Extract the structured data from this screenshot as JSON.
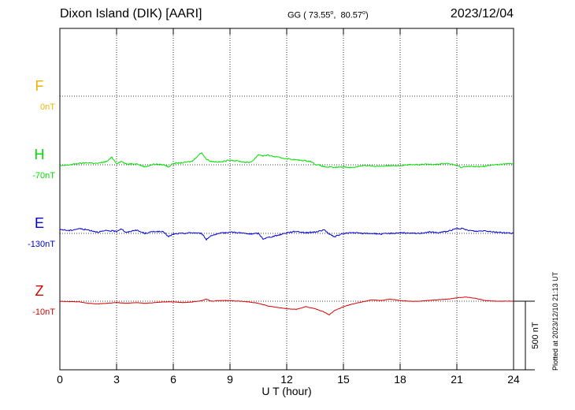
{
  "header": {
    "station": "Dixon Island (DIK)  [AARI]",
    "coords": "GG ( 73.55°,  80.57°)",
    "date": "2023/12/04"
  },
  "footer": {
    "plotted": "Plotted at 2023/12/10 21:13 UT"
  },
  "chart_data": {
    "type": "line",
    "xlabel": "U T (hour)",
    "xlim": [
      0,
      24
    ],
    "xticks": [
      0,
      3,
      6,
      9,
      12,
      15,
      18,
      21,
      24
    ],
    "xtick_labels": [
      "0",
      "3",
      "6",
      "9",
      "12",
      "15",
      "18",
      "21",
      "24"
    ],
    "scale_bar": {
      "label": "500 nT",
      "value_nT": 500
    },
    "grid": true,
    "series": [
      {
        "name": "F",
        "baseline": "0nT",
        "color": "#f0b400",
        "x": [],
        "y": []
      },
      {
        "name": "H",
        "baseline": "-70nT",
        "color": "#00e000",
        "x": [
          0,
          0.5,
          1,
          1.5,
          2,
          2.5,
          2.75,
          3,
          3.25,
          3.5,
          4,
          4.5,
          5,
          5.5,
          5.75,
          6,
          6.5,
          7,
          7.25,
          7.5,
          7.75,
          8,
          8.5,
          9,
          9.5,
          10,
          10.25,
          10.5,
          10.75,
          11,
          11.5,
          12,
          12.5,
          13,
          13.25,
          13.5,
          14,
          14.5,
          15,
          15.5,
          16,
          16.5,
          17,
          17.5,
          18,
          18.5,
          19,
          19.5,
          20,
          20.5,
          21,
          21.25,
          21.5,
          22,
          22.5,
          23,
          23.5,
          24
        ],
        "y": [
          -10,
          0,
          10,
          15,
          10,
          25,
          55,
          10,
          25,
          5,
          10,
          -15,
          5,
          0,
          -15,
          10,
          15,
          25,
          60,
          90,
          40,
          25,
          20,
          35,
          25,
          15,
          35,
          75,
          65,
          70,
          55,
          45,
          35,
          30,
          25,
          5,
          -15,
          -20,
          -15,
          -20,
          -5,
          -10,
          -10,
          -5,
          -5,
          0,
          0,
          5,
          5,
          10,
          -5,
          -20,
          -10,
          -15,
          -10,
          0,
          5,
          10
        ]
      },
      {
        "name": "E",
        "baseline": "-130nT",
        "color": "#0000dd",
        "x": [
          0,
          0.5,
          1,
          1.5,
          2,
          2.5,
          3,
          3.25,
          3.5,
          4,
          4.5,
          5,
          5.5,
          5.75,
          6,
          6.5,
          7,
          7.5,
          7.75,
          8,
          8.5,
          9,
          9.5,
          10,
          10.5,
          10.75,
          11,
          11.5,
          12,
          12.5,
          13,
          13.5,
          14,
          14.25,
          14.5,
          15,
          15.5,
          16,
          16.5,
          17,
          17.5,
          18,
          18.5,
          19,
          19.5,
          20,
          20.5,
          21,
          21.25,
          21.5,
          22,
          22.5,
          23,
          23.5,
          24
        ],
        "y": [
          30,
          20,
          35,
          25,
          10,
          20,
          15,
          35,
          5,
          25,
          0,
          15,
          10,
          -25,
          -5,
          0,
          5,
          0,
          -45,
          -15,
          0,
          10,
          5,
          -5,
          0,
          -40,
          -30,
          -15,
          5,
          15,
          5,
          10,
          25,
          -5,
          -25,
          0,
          5,
          0,
          0,
          -5,
          0,
          5,
          0,
          0,
          10,
          5,
          15,
          35,
          35,
          25,
          15,
          20,
          10,
          5,
          0
        ]
      },
      {
        "name": "Z",
        "baseline": "-10nT",
        "color": "#dd0000",
        "x": [
          0,
          1,
          1.5,
          2,
          2.5,
          3,
          3.5,
          4,
          4.5,
          5,
          5.5,
          6,
          6.5,
          7,
          7.5,
          7.75,
          8,
          8.5,
          9,
          9.5,
          10,
          10.5,
          11,
          11.5,
          12,
          12.5,
          13,
          13.5,
          14,
          14.25,
          14.5,
          15,
          15.5,
          16,
          16.5,
          17,
          17.5,
          18,
          18.5,
          19,
          19.5,
          20,
          20.5,
          21,
          21.5,
          22,
          22.5,
          23,
          23.5,
          24
        ],
        "y": [
          0,
          -5,
          -15,
          -20,
          -15,
          -10,
          -15,
          -10,
          -15,
          -10,
          -5,
          -5,
          -10,
          -5,
          5,
          15,
          0,
          5,
          5,
          0,
          -5,
          -15,
          -35,
          -45,
          -55,
          -60,
          -40,
          -55,
          -80,
          -100,
          -70,
          -40,
          -20,
          -5,
          10,
          5,
          15,
          5,
          0,
          0,
          5,
          10,
          15,
          25,
          30,
          20,
          5,
          0,
          0,
          0
        ]
      }
    ]
  }
}
